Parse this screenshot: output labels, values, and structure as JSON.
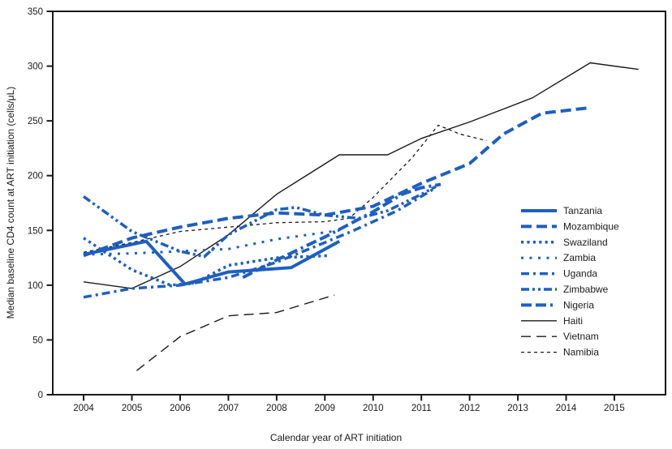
{
  "page": {
    "background": "#ffffff"
  },
  "chart_data": {
    "type": "line",
    "title": "",
    "xlabel": "Calendar year of ART initiation",
    "ylabel": "Median baseline CD4 count at ART initiation (cells/μL)",
    "xlim": [
      2003.36,
      2016.06
    ],
    "ylim": [
      0,
      350
    ],
    "xticks": [
      2004,
      2005,
      2006,
      2007,
      2008,
      2009,
      2010,
      2011,
      2012,
      2013,
      2014,
      2015
    ],
    "yticks": [
      0,
      50,
      100,
      150,
      200,
      250,
      300,
      350
    ],
    "grid": false,
    "legend_position": "inside-right-middle",
    "colors": {
      "series_blue": "#1e5fc1",
      "series_black": "#1a1a1a",
      "axis": "#1a1a1a"
    },
    "series": [
      {
        "name": "Tanzania",
        "color": "#1e5fc1",
        "width": 4,
        "dash": "",
        "x": [
          2004,
          2005.3,
          2006.1,
          2007,
          2008.3,
          2009.3
        ],
        "y": [
          128,
          140,
          101,
          112,
          116,
          140
        ]
      },
      {
        "name": "Mozambique",
        "color": "#1e5fc1",
        "width": 4,
        "dash": "13 6",
        "x": [
          2004,
          2005,
          2006,
          2007,
          2008,
          2009,
          2010,
          2011,
          2012,
          2012.7,
          2013.5,
          2014.5
        ],
        "y": [
          127,
          143,
          153,
          161,
          166,
          164,
          172,
          193,
          211,
          238,
          257,
          262
        ]
      },
      {
        "name": "Swaziland",
        "color": "#1e5fc1",
        "width": 3.5,
        "dash": "3.2 4.2",
        "x": [
          2004,
          2005,
          2005.8,
          2006.3,
          2007,
          2008,
          2009.1
        ],
        "y": [
          143,
          114,
          100,
          102,
          118,
          125,
          127
        ]
      },
      {
        "name": "Zambia",
        "color": "#1e5fc1",
        "width": 3,
        "dash": "3 7.5",
        "x": [
          2004,
          2005,
          2006,
          2007,
          2008,
          2009.3
        ],
        "y": [
          128,
          129,
          131,
          133,
          142,
          150
        ]
      },
      {
        "name": "Uganda",
        "color": "#1e5fc1",
        "width": 3.5,
        "dash": "10 5 3 5",
        "x": [
          2004,
          2005,
          2006,
          2007,
          2008,
          2009,
          2009.6,
          2010.5,
          2011.3
        ],
        "y": [
          89,
          97,
          100,
          107,
          121,
          139,
          150,
          168,
          189
        ]
      },
      {
        "name": "Zimbabwe",
        "color": "#1e5fc1",
        "width": 3.5,
        "dash": "10 4 3 4 3 4",
        "x": [
          2004,
          2005,
          2006,
          2006.5,
          2007,
          2008,
          2008.4,
          2009,
          2009.7,
          2010.3,
          2011,
          2011.3
        ],
        "y": [
          181,
          149,
          131,
          126,
          146,
          169,
          171,
          164,
          161,
          168,
          183,
          190
        ]
      },
      {
        "name": "Nigeria",
        "color": "#1e5fc1",
        "width": 4,
        "dash": "13 5 13 5 3 5",
        "x": [
          2007.3,
          2008,
          2009,
          2010,
          2010.6,
          2011,
          2011.4
        ],
        "y": [
          107,
          123,
          144,
          167,
          183,
          189,
          192
        ]
      },
      {
        "name": "Haiti",
        "color": "#1a1a1a",
        "width": 1.4,
        "dash": "",
        "x": [
          2004,
          2005,
          2006,
          2007,
          2008,
          2009.3,
          2010.3,
          2011,
          2012,
          2013.3,
          2014.5,
          2015.5
        ],
        "y": [
          103,
          97,
          117,
          146,
          183,
          219,
          219,
          234,
          249,
          271,
          303,
          297
        ]
      },
      {
        "name": "Vietnam",
        "color": "#1a1a1a",
        "width": 1.4,
        "dash": "12 7",
        "x": [
          2005.1,
          2006,
          2007,
          2008,
          2009.2
        ],
        "y": [
          22,
          53,
          72,
          75,
          91
        ]
      },
      {
        "name": "Namibia",
        "color": "#1a1a1a",
        "width": 1.3,
        "dash": "4 4",
        "x": [
          2004,
          2005,
          2006,
          2007,
          2008,
          2009,
          2009.5,
          2010,
          2010.8,
          2011.35,
          2011.8,
          2012.35
        ],
        "y": [
          130,
          139,
          149,
          153,
          157,
          158,
          161,
          180,
          216,
          246,
          238,
          232
        ]
      }
    ]
  }
}
